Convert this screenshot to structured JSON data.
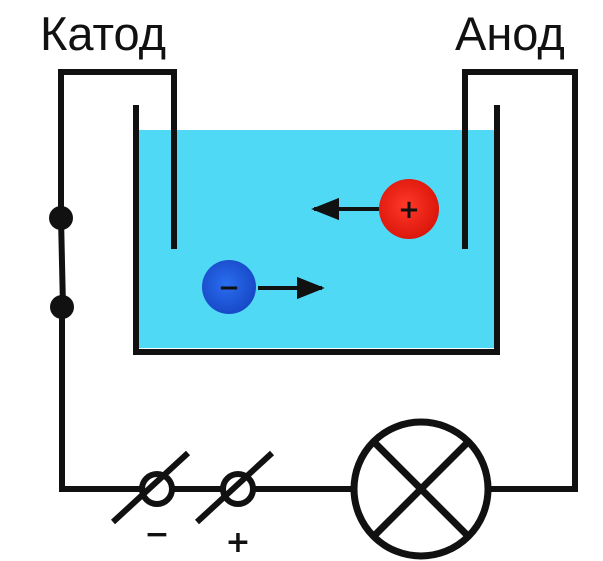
{
  "labels": {
    "cathode": "Катод",
    "anode": "Анод"
  },
  "source": {
    "negative_sign": "−",
    "positive_sign": "+"
  },
  "ions": {
    "positive_symbol": "+",
    "negative_symbol": "−"
  },
  "colors": {
    "wire": "#111111",
    "electrolyte": "#4fd9f5",
    "cation": "#e81c14",
    "anion": "#1c55d6"
  }
}
